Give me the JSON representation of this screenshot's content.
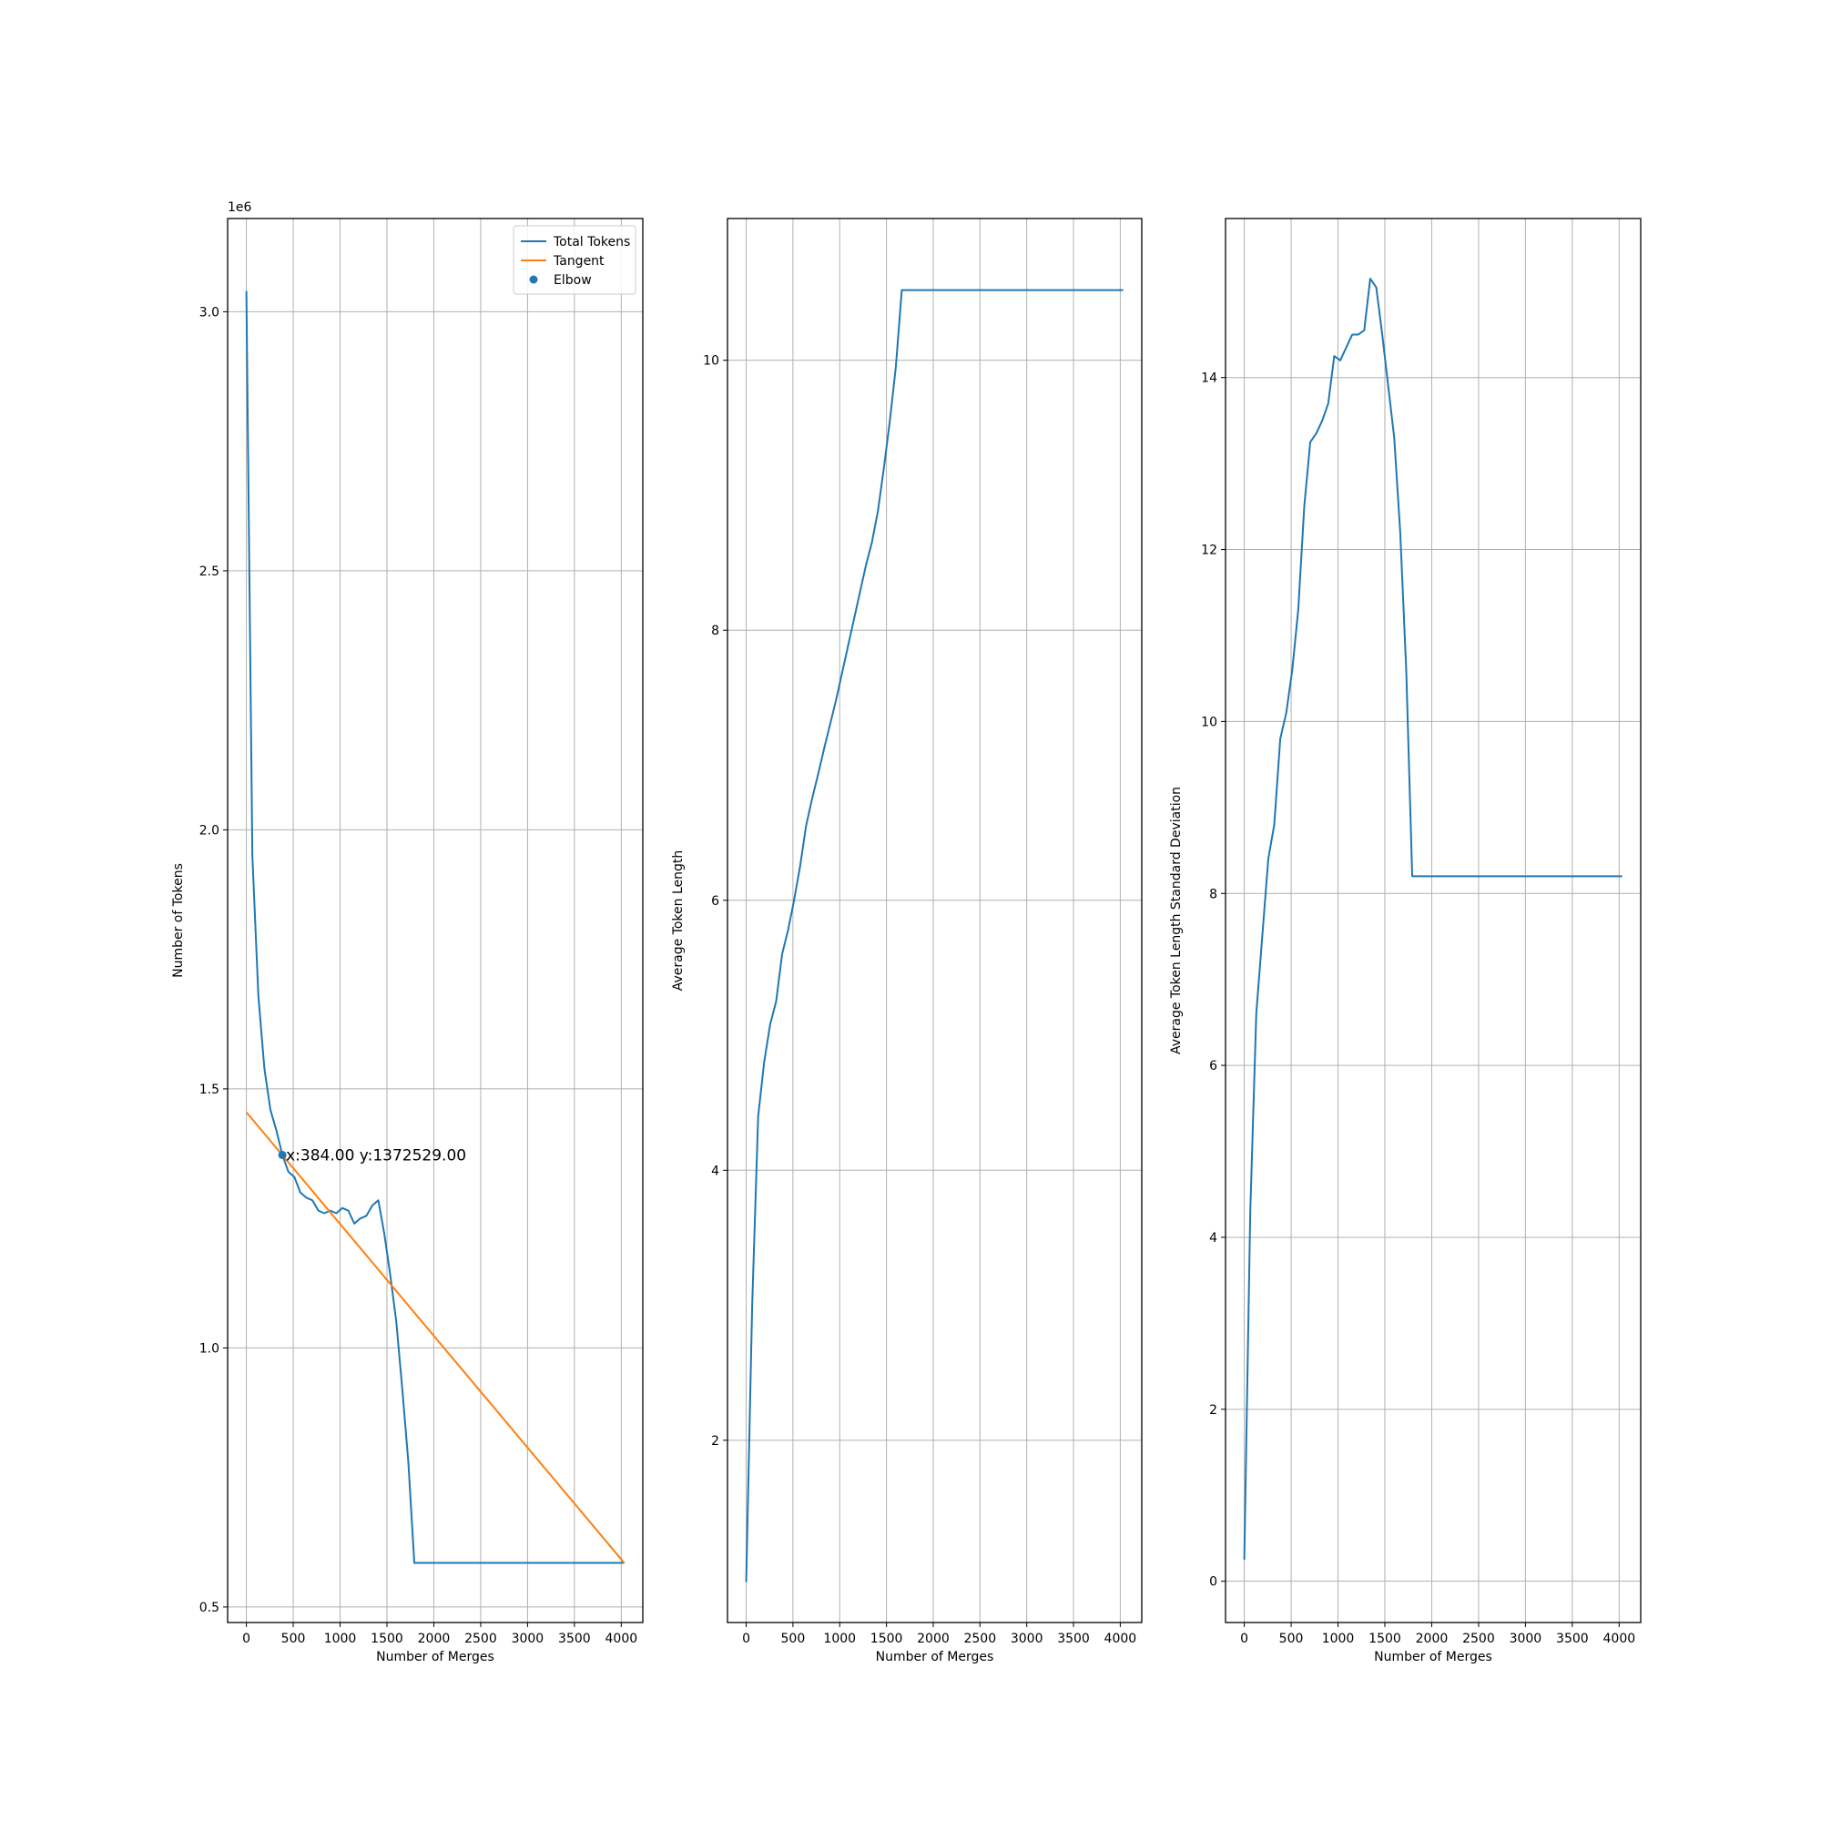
{
  "chart_data": [
    {
      "type": "line",
      "title": "",
      "xlabel": "Number of Merges",
      "ylabel": "Number of Tokens",
      "y_offset_text": "1e6",
      "xlim": [
        -200,
        4230
      ],
      "ylim": [
        0.47,
        3.18
      ],
      "y_scale_factor": 1000000,
      "xticks": [
        0,
        500,
        1000,
        1500,
        2000,
        2500,
        3000,
        3500,
        4000
      ],
      "xtick_labels": [
        "0",
        "500",
        "1000",
        "1500",
        "2000",
        "2500",
        "3000",
        "3500",
        "4000"
      ],
      "yticks": [
        0.5,
        1.0,
        1.5,
        2.0,
        2.5,
        3.0
      ],
      "ytick_labels": [
        "0.5",
        "1.0",
        "1.5",
        "2.0",
        "2.5",
        "3.0"
      ],
      "grid": true,
      "legend": {
        "placement": "upper right",
        "entries": [
          {
            "label": "Total Tokens",
            "kind": "line",
            "color": "#1f77b4"
          },
          {
            "label": "Tangent",
            "kind": "line",
            "color": "#ff7f0e"
          },
          {
            "label": "Elbow",
            "kind": "marker",
            "color": "#1f77b4"
          }
        ]
      },
      "series": [
        {
          "name": "Total Tokens",
          "color": "#1f77b4",
          "x": [
            0,
            64,
            128,
            192,
            256,
            320,
            384,
            448,
            512,
            576,
            640,
            704,
            768,
            832,
            896,
            960,
            1024,
            1088,
            1152,
            1216,
            1280,
            1344,
            1408,
            1472,
            1536,
            1600,
            1664,
            1728,
            1792,
            1856,
            2000,
            2500,
            3000,
            3500,
            4032
          ],
          "y": [
            3.04,
            1.95,
            1.68,
            1.54,
            1.46,
            1.42,
            1.3725,
            1.34,
            1.33,
            1.3,
            1.29,
            1.285,
            1.265,
            1.26,
            1.265,
            1.26,
            1.27,
            1.265,
            1.24,
            1.25,
            1.255,
            1.275,
            1.285,
            1.22,
            1.14,
            1.05,
            0.92,
            0.78,
            0.585,
            0.585,
            0.585,
            0.585,
            0.585,
            0.585,
            0.585
          ]
        },
        {
          "name": "Tangent",
          "color": "#ff7f0e",
          "x": [
            0,
            4032
          ],
          "y": [
            1.455,
            0.585
          ]
        },
        {
          "name": "Elbow",
          "kind": "scatter",
          "color": "#1f77b4",
          "x": [
            384
          ],
          "y": [
            1.3725
          ]
        }
      ],
      "annotations": [
        {
          "text": "x:384.00 y:1372529.00",
          "x": 384,
          "y": 1.3725
        }
      ]
    },
    {
      "type": "line",
      "title": "",
      "xlabel": "Number of Merges",
      "ylabel": "Average Token Length",
      "xlim": [
        -200,
        4230
      ],
      "ylim": [
        0.65,
        11.05
      ],
      "xticks": [
        0,
        500,
        1000,
        1500,
        2000,
        2500,
        3000,
        3500,
        4000
      ],
      "xtick_labels": [
        "0",
        "500",
        "1000",
        "1500",
        "2000",
        "2500",
        "3000",
        "3500",
        "4000"
      ],
      "yticks": [
        2,
        4,
        6,
        8,
        10
      ],
      "ytick_labels": [
        "2",
        "4",
        "6",
        "8",
        "10"
      ],
      "grid": true,
      "series": [
        {
          "name": "",
          "color": "#1f77b4",
          "x": [
            0,
            64,
            128,
            192,
            256,
            320,
            384,
            448,
            512,
            576,
            640,
            704,
            768,
            832,
            896,
            960,
            1024,
            1088,
            1152,
            1216,
            1280,
            1344,
            1408,
            1472,
            1536,
            1600,
            1664,
            1728,
            1792,
            1856,
            2000,
            2500,
            3000,
            3500,
            4032
          ],
          "y": [
            0.95,
            3.0,
            4.4,
            4.8,
            5.08,
            5.25,
            5.6,
            5.78,
            6.0,
            6.25,
            6.55,
            6.75,
            6.93,
            7.12,
            7.3,
            7.48,
            7.68,
            7.88,
            8.08,
            8.28,
            8.48,
            8.65,
            8.88,
            9.2,
            9.55,
            9.95,
            10.52,
            10.52,
            10.52,
            10.52,
            10.52,
            10.52,
            10.52,
            10.52,
            10.52
          ]
        }
      ]
    },
    {
      "type": "line",
      "title": "",
      "xlabel": "Number of Merges",
      "ylabel": "Average Token Length Standard Deviation",
      "xlim": [
        -200,
        4230
      ],
      "ylim": [
        -0.48,
        15.85
      ],
      "xticks": [
        0,
        500,
        1000,
        1500,
        2000,
        2500,
        3000,
        3500,
        4000
      ],
      "xtick_labels": [
        "0",
        "500",
        "1000",
        "1500",
        "2000",
        "2500",
        "3000",
        "3500",
        "4000"
      ],
      "yticks": [
        0,
        2,
        4,
        6,
        8,
        10,
        12,
        14
      ],
      "ytick_labels": [
        "0",
        "2",
        "4",
        "6",
        "8",
        "10",
        "12",
        "14"
      ],
      "grid": true,
      "series": [
        {
          "name": "",
          "color": "#1f77b4",
          "x": [
            0,
            64,
            128,
            192,
            256,
            320,
            384,
            448,
            512,
            576,
            640,
            704,
            768,
            832,
            896,
            960,
            1024,
            1088,
            1152,
            1216,
            1280,
            1344,
            1408,
            1472,
            1536,
            1600,
            1664,
            1728,
            1792,
            1856,
            2000,
            2500,
            3000,
            3500,
            4032
          ],
          "y": [
            0.25,
            4.3,
            6.6,
            7.5,
            8.4,
            8.8,
            9.8,
            10.1,
            10.6,
            11.3,
            12.5,
            13.25,
            13.35,
            13.5,
            13.7,
            14.25,
            14.2,
            14.35,
            14.5,
            14.5,
            14.55,
            15.15,
            15.05,
            14.5,
            13.9,
            13.3,
            12.2,
            10.6,
            8.2,
            8.2,
            8.2,
            8.2,
            8.2,
            8.2,
            8.2
          ]
        }
      ]
    }
  ]
}
